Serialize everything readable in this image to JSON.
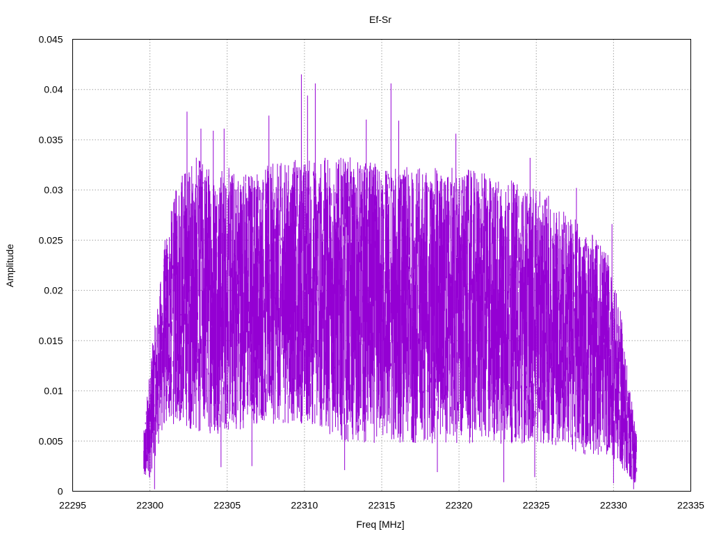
{
  "chart_data": {
    "type": "line",
    "title": "Ef-Sr",
    "xlabel": "Freq [MHz]",
    "ylabel": "Amplitude",
    "xlim": [
      22295,
      22335
    ],
    "ylim": [
      0,
      0.045
    ],
    "xticks": [
      "22295",
      "22300",
      "22305",
      "22310",
      "22315",
      "22320",
      "22325",
      "22330",
      "22335"
    ],
    "yticks": [
      "0",
      "0.005",
      "0.01",
      "0.015",
      "0.02",
      "0.025",
      "0.03",
      "0.035",
      "0.04",
      "0.045"
    ],
    "grid": true,
    "grid_style": "dotted",
    "series": [
      {
        "color": "#9400D3",
        "style": "dense impulses",
        "x_range": [
          22299.6,
          22331.5
        ],
        "envelope": [
          {
            "x": 22299.6,
            "low": 0.0005,
            "high": 0.006
          },
          {
            "x": 22300.0,
            "low": 0.001,
            "high": 0.013
          },
          {
            "x": 22300.5,
            "low": 0.004,
            "high": 0.019
          },
          {
            "x": 22301.0,
            "low": 0.006,
            "high": 0.026
          },
          {
            "x": 22302.0,
            "low": 0.006,
            "high": 0.033
          },
          {
            "x": 22303.0,
            "low": 0.005,
            "high": 0.034
          },
          {
            "x": 22305.0,
            "low": 0.005,
            "high": 0.033
          },
          {
            "x": 22307.0,
            "low": 0.006,
            "high": 0.033
          },
          {
            "x": 22310.0,
            "low": 0.006,
            "high": 0.034
          },
          {
            "x": 22313.0,
            "low": 0.004,
            "high": 0.034
          },
          {
            "x": 22316.0,
            "low": 0.004,
            "high": 0.033
          },
          {
            "x": 22320.0,
            "low": 0.004,
            "high": 0.033
          },
          {
            "x": 22323.0,
            "low": 0.004,
            "high": 0.032
          },
          {
            "x": 22326.0,
            "low": 0.004,
            "high": 0.03
          },
          {
            "x": 22328.0,
            "low": 0.003,
            "high": 0.027
          },
          {
            "x": 22329.5,
            "low": 0.003,
            "high": 0.025
          },
          {
            "x": 22330.5,
            "low": 0.002,
            "high": 0.018
          },
          {
            "x": 22331.0,
            "low": 0.001,
            "high": 0.011
          },
          {
            "x": 22331.5,
            "low": 0.0005,
            "high": 0.006
          }
        ],
        "peaks": [
          {
            "x": 22302.4,
            "y": 0.0378
          },
          {
            "x": 22303.3,
            "y": 0.0361
          },
          {
            "x": 22304.1,
            "y": 0.0359
          },
          {
            "x": 22304.8,
            "y": 0.0361
          },
          {
            "x": 22307.7,
            "y": 0.0374
          },
          {
            "x": 22309.8,
            "y": 0.0415
          },
          {
            "x": 22310.2,
            "y": 0.0394
          },
          {
            "x": 22310.7,
            "y": 0.0406
          },
          {
            "x": 22314.0,
            "y": 0.037
          },
          {
            "x": 22315.6,
            "y": 0.0406
          },
          {
            "x": 22316.1,
            "y": 0.0369
          },
          {
            "x": 22319.8,
            "y": 0.0356
          },
          {
            "x": 22324.6,
            "y": 0.0332
          },
          {
            "x": 22327.6,
            "y": 0.0302
          },
          {
            "x": 22329.9,
            "y": 0.0266
          }
        ],
        "dips": [
          {
            "x": 22300.3,
            "y": 0.0002
          },
          {
            "x": 22304.6,
            "y": 0.0024
          },
          {
            "x": 22306.6,
            "y": 0.0025
          },
          {
            "x": 22312.6,
            "y": 0.0021
          },
          {
            "x": 22318.6,
            "y": 0.0019
          },
          {
            "x": 22322.9,
            "y": 0.0009
          },
          {
            "x": 22324.9,
            "y": 0.0014
          },
          {
            "x": 22330.0,
            "y": 0.0008
          },
          {
            "x": 22331.3,
            "y": 0.0002
          }
        ]
      }
    ]
  }
}
